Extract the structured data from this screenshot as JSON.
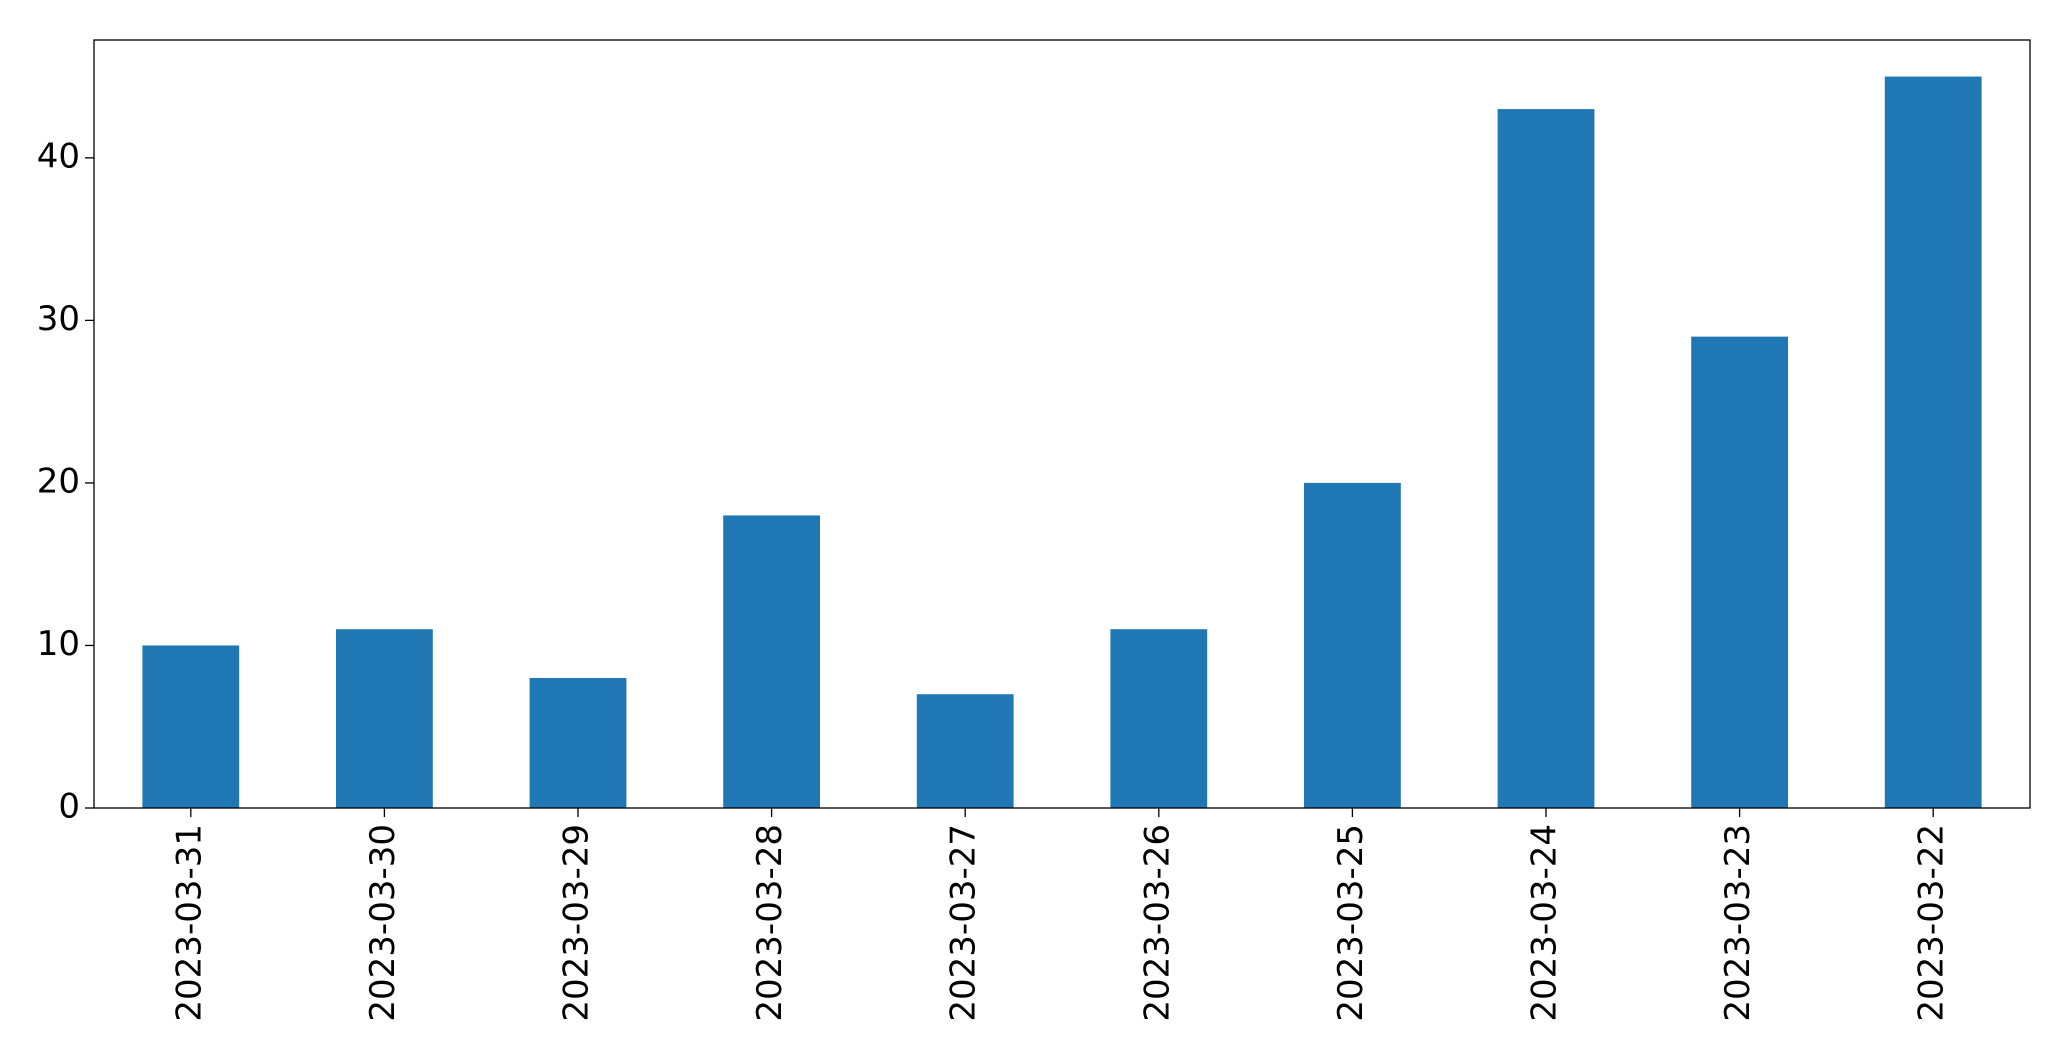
{
  "chart_data": {
    "type": "bar",
    "categories": [
      "2023-03-31",
      "2023-03-30",
      "2023-03-29",
      "2023-03-28",
      "2023-03-27",
      "2023-03-26",
      "2023-03-25",
      "2023-03-24",
      "2023-03-23",
      "2023-03-22"
    ],
    "values": [
      10,
      11,
      8,
      18,
      7,
      11,
      20,
      43,
      29,
      45
    ],
    "color": "#1f77b4",
    "ylim": [
      0,
      47.25
    ],
    "yticks": [
      0,
      10,
      20,
      30,
      40
    ]
  }
}
